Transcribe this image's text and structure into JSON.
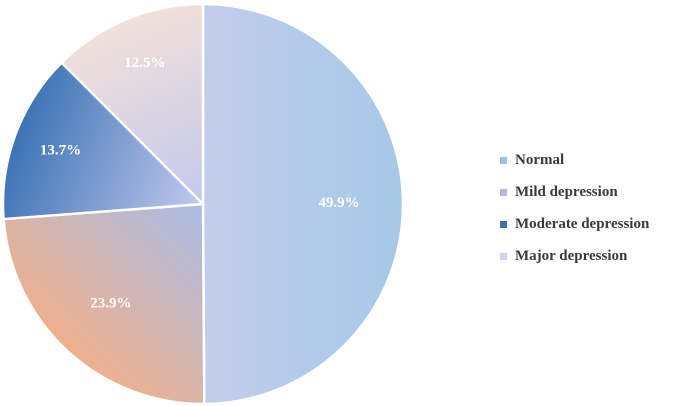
{
  "chart_data": {
    "type": "pie",
    "slices": [
      {
        "name": "Normal",
        "value": 49.9,
        "label": "49.9%",
        "colors": [
          "#a6c8e8",
          "#c3cdeb"
        ]
      },
      {
        "name": "Mild depression",
        "value": 23.9,
        "label": "23.9%",
        "colors": [
          "#eeb08e",
          "#a9bde6"
        ]
      },
      {
        "name": "Moderate depression",
        "value": 13.7,
        "label": "13.7%",
        "colors": [
          "#3c73b5",
          "#c3c9ee"
        ]
      },
      {
        "name": "Major depression",
        "value": 12.5,
        "label": "12.5%",
        "colors": [
          "#f1e0da",
          "#c2c8ec"
        ]
      }
    ],
    "legend_position": "right",
    "legend_swatch_colors": [
      "#9dc0e3",
      "#b3b9d6",
      "#3e6fae",
      "#cdd4ee"
    ]
  }
}
